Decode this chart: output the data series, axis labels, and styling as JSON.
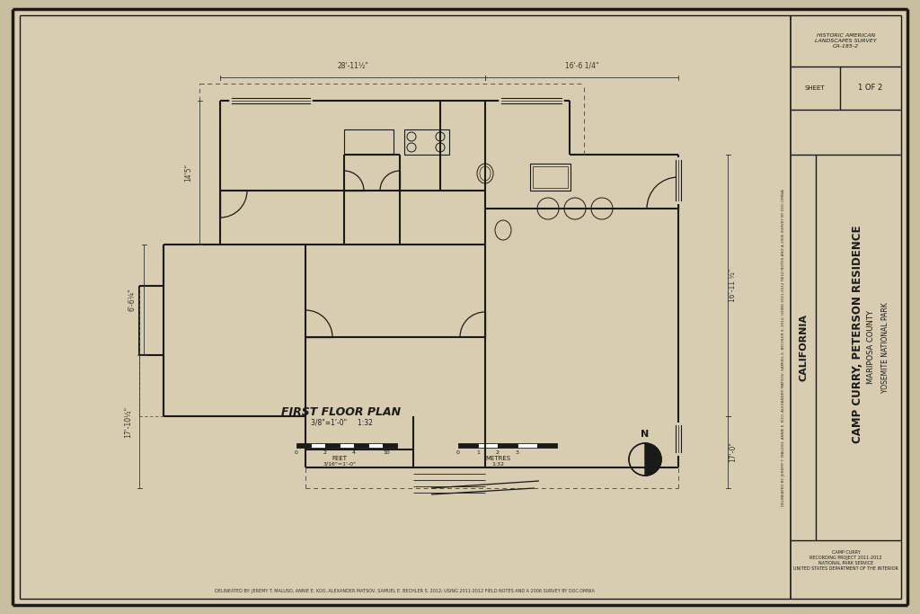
{
  "bg_color": "#c8bfa0",
  "paper_color": "#d8cdb0",
  "border_color": "#1a1a1a",
  "line_color": "#1a1a1a",
  "title": "CAMP CURRY, PETERSON RESIDENCE",
  "subtitle": "MARIPOSA COUNTY",
  "park": "YOSEMITE NATIONAL PARK",
  "plan_title": "FIRST FLOOR PLAN",
  "scale_text": "3/8\"=1'-0\"",
  "sheet": "1 OF 2",
  "state": "CALIFORNIA",
  "survey_text": "HISTORIC AMERICAN\nLANDSCAPES SURVEY\nCA-185-2",
  "dim_top_left": "28'-11½\"",
  "dim_top_right": "16'-6 1/4\"",
  "dim_left_top": "14'5\"",
  "dim_left_mid": "6'-6¼\"",
  "dim_left_bot": "17'-10½\"",
  "dim_right_top": "16'-11 ½\"",
  "dim_right_bot": "17'-0\""
}
